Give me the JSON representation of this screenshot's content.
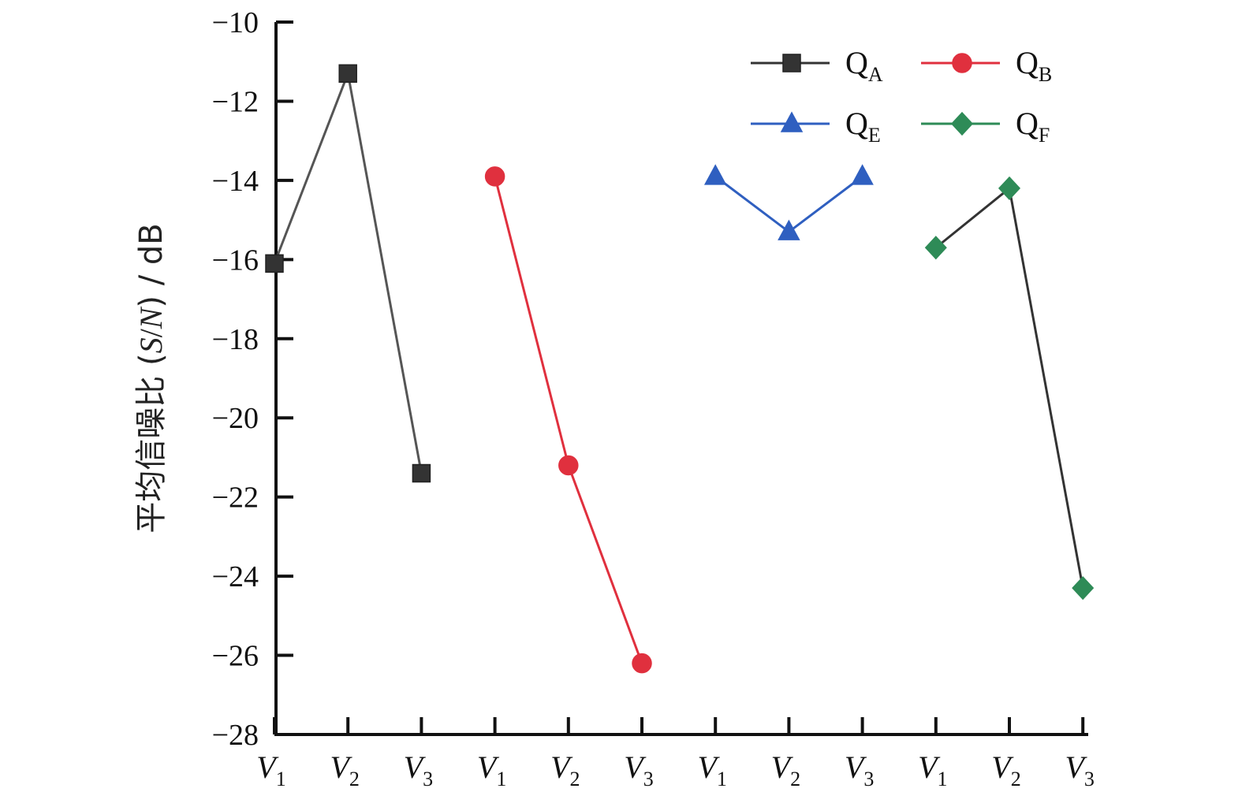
{
  "chart_data": {
    "type": "line",
    "title": "",
    "ylabel": {
      "prefix": "平均信噪比 (",
      "italic1": "S",
      "slash": "/",
      "italic2": "N",
      "suffix": ") / dB"
    },
    "xlabel": "",
    "ylim": [
      -28,
      -10
    ],
    "yticks": [
      -10,
      -12,
      -14,
      -16,
      -18,
      -20,
      -22,
      -24,
      -26,
      -28
    ],
    "ytick_labels": [
      "−10",
      "−12",
      "−14",
      "−16",
      "−18",
      "−20",
      "−22",
      "−24",
      "−26",
      "−28"
    ],
    "x_tick_labels": [
      {
        "main": "V",
        "sub": "1"
      },
      {
        "main": "V",
        "sub": "2"
      },
      {
        "main": "V",
        "sub": "3"
      },
      {
        "main": "V",
        "sub": "1"
      },
      {
        "main": "V",
        "sub": "2"
      },
      {
        "main": "V",
        "sub": "3"
      },
      {
        "main": "V",
        "sub": "1"
      },
      {
        "main": "V",
        "sub": "2"
      },
      {
        "main": "V",
        "sub": "3"
      },
      {
        "main": "V",
        "sub": "1"
      },
      {
        "main": "V",
        "sub": "2"
      },
      {
        "main": "V",
        "sub": "3"
      }
    ],
    "grid": false,
    "legend_placement": "top-right",
    "series": [
      {
        "name": "Q",
        "name_sub": "A",
        "color": "#333333",
        "line_color": "#555555",
        "marker": "square",
        "x_index": [
          0,
          1,
          2
        ],
        "values": [
          -16.1,
          -11.3,
          -21.4
        ]
      },
      {
        "name": "Q",
        "name_sub": "B",
        "color": "#e0303e",
        "line_color": "#e0303e",
        "marker": "circle",
        "x_index": [
          3,
          4,
          5
        ],
        "values": [
          -13.9,
          -21.2,
          -26.2
        ]
      },
      {
        "name": "Q",
        "name_sub": "E",
        "color": "#2f5fc0",
        "line_color": "#2f5fc0",
        "marker": "triangle",
        "x_index": [
          6,
          7,
          8
        ],
        "values": [
          -13.9,
          -15.3,
          -13.9
        ]
      },
      {
        "name": "Q",
        "name_sub": "F",
        "color": "#2e8b57",
        "line_color": "#333333",
        "marker": "diamond",
        "x_index": [
          9,
          10,
          11
        ],
        "values": [
          -15.7,
          -14.2,
          -24.3
        ]
      }
    ]
  }
}
